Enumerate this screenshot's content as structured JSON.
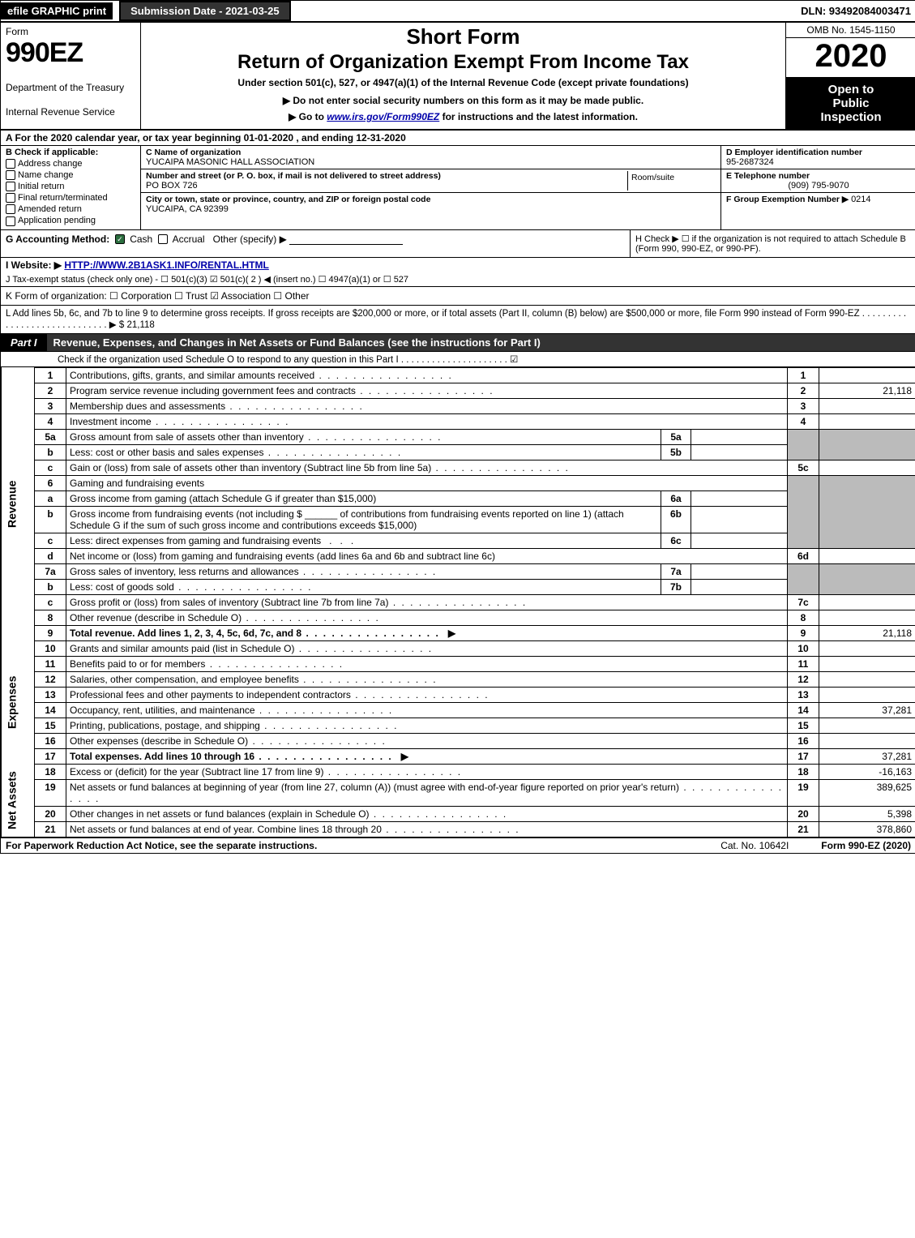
{
  "topbar": {
    "efile": "efile GRAPHIC print",
    "subdate": "Submission Date - 2021-03-25",
    "dln": "DLN: 93492084003471"
  },
  "header": {
    "form_word": "Form",
    "form_num": "990EZ",
    "dept1": "Department of the Treasury",
    "dept2": "Internal Revenue Service",
    "short": "Short Form",
    "title": "Return of Organization Exempt From Income Tax",
    "sub1": "Under section 501(c), 527, or 4947(a)(1) of the Internal Revenue Code (except private foundations)",
    "sub2": "▶ Do not enter social security numbers on this form as it may be made public.",
    "sub3_pre": "▶ Go to ",
    "sub3_link": "www.irs.gov/Form990EZ",
    "sub3_post": " for instructions and the latest information.",
    "omb": "OMB No. 1545-1150",
    "year": "2020",
    "open1": "Open to",
    "open2": "Public",
    "open3": "Inspection"
  },
  "rowA": "A  For the 2020 calendar year, or tax year beginning 01-01-2020 , and ending 12-31-2020",
  "secB": {
    "label": "B  Check if applicable:",
    "opts": [
      "Address change",
      "Name change",
      "Initial return",
      "Final return/terminated",
      "Amended return",
      "Application pending"
    ]
  },
  "secC": {
    "name_lbl": "C Name of organization",
    "name": "YUCAIPA MASONIC HALL ASSOCIATION",
    "addr_lbl": "Number and street (or P. O. box, if mail is not delivered to street address)",
    "addr": "PO BOX 726",
    "room_lbl": "Room/suite",
    "city_lbl": "City or town, state or province, country, and ZIP or foreign postal code",
    "city": "YUCAIPA, CA  92399"
  },
  "secD": {
    "ein_lbl": "D Employer identification number",
    "ein": "95-2687324",
    "tel_lbl": "E Telephone number",
    "tel": "(909) 795-9070",
    "grp_lbl": "F Group Exemption Number   ▶",
    "grp": "0214"
  },
  "rowG": {
    "label": "G Accounting Method:",
    "cash": "Cash",
    "accrual": "Accrual",
    "other": "Other (specify) ▶"
  },
  "rowH": {
    "text": "H  Check ▶ ☐ if the organization is not required to attach Schedule B (Form 990, 990-EZ, or 990-PF)."
  },
  "rowI": {
    "label": "I Website: ▶",
    "url": "HTTP://WWW.2B1ASK1.INFO/RENTAL.HTML"
  },
  "rowJ": "J Tax-exempt status (check only one) -  ☐ 501(c)(3)  ☑ 501(c)( 2 ) ◀ (insert no.)  ☐ 4947(a)(1) or  ☐ 527",
  "rowK": "K Form of organization:   ☐ Corporation   ☐ Trust   ☑ Association   ☐ Other",
  "rowL": {
    "text": "L Add lines 5b, 6c, and 7b to line 9 to determine gross receipts. If gross receipts are $200,000 or more, or if total assets (Part II, column (B) below) are $500,000 or more, file Form 990 instead of Form 990-EZ  .  .  .  .  .  .  .  .  .  .  .  .  .  .  .  .  .  .  .  .  .  .  .  .  .  .  .  .  .  ▶ $",
    "amt": "21,118"
  },
  "part1": {
    "label": "Part I",
    "title": "Revenue, Expenses, and Changes in Net Assets or Fund Balances (see the instructions for Part I)",
    "sub": "Check if the organization used Schedule O to respond to any question in this Part I .  .  .  .  .  .  .  .  .  .  .  .  .  .  .  .  .  .  .  .  .  ☑"
  },
  "sidebars": {
    "revenue": "Revenue",
    "expenses": "Expenses",
    "netassets": "Net Assets"
  },
  "lines": {
    "l1": "Contributions, gifts, grants, and similar amounts received",
    "l2": "Program service revenue including government fees and contracts",
    "l2v": "21,118",
    "l3": "Membership dues and assessments",
    "l4": "Investment income",
    "l5a": "Gross amount from sale of assets other than inventory",
    "l5b": "Less: cost or other basis and sales expenses",
    "l5c": "Gain or (loss) from sale of assets other than inventory (Subtract line 5b from line 5a)",
    "l6": "Gaming and fundraising events",
    "l6a": "Gross income from gaming (attach Schedule G if greater than $15,000)",
    "l6b": "Gross income from fundraising events (not including $ ______ of contributions from fundraising events reported on line 1) (attach Schedule G if the sum of such gross income and contributions exceeds $15,000)",
    "l6c": "Less: direct expenses from gaming and fundraising events",
    "l6d": "Net income or (loss) from gaming and fundraising events (add lines 6a and 6b and subtract line 6c)",
    "l7a": "Gross sales of inventory, less returns and allowances",
    "l7b": "Less: cost of goods sold",
    "l7c": "Gross profit or (loss) from sales of inventory (Subtract line 7b from line 7a)",
    "l8": "Other revenue (describe in Schedule O)",
    "l9": "Total revenue. Add lines 1, 2, 3, 4, 5c, 6d, 7c, and 8",
    "l9v": "21,118",
    "l10": "Grants and similar amounts paid (list in Schedule O)",
    "l11": "Benefits paid to or for members",
    "l12": "Salaries, other compensation, and employee benefits",
    "l13": "Professional fees and other payments to independent contractors",
    "l14": "Occupancy, rent, utilities, and maintenance",
    "l14v": "37,281",
    "l15": "Printing, publications, postage, and shipping",
    "l16": "Other expenses (describe in Schedule O)",
    "l17": "Total expenses. Add lines 10 through 16",
    "l17v": "37,281",
    "l18": "Excess or (deficit) for the year (Subtract line 17 from line 9)",
    "l18v": "-16,163",
    "l19": "Net assets or fund balances at beginning of year (from line 27, column (A)) (must agree with end-of-year figure reported on prior year's return)",
    "l19v": "389,625",
    "l20": "Other changes in net assets or fund balances (explain in Schedule O)",
    "l20v": "5,398",
    "l21": "Net assets or fund balances at end of year. Combine lines 18 through 20",
    "l21v": "378,860"
  },
  "footer": {
    "left": "For Paperwork Reduction Act Notice, see the separate instructions.",
    "mid": "Cat. No. 10642I",
    "right": "Form 990-EZ (2020)"
  }
}
